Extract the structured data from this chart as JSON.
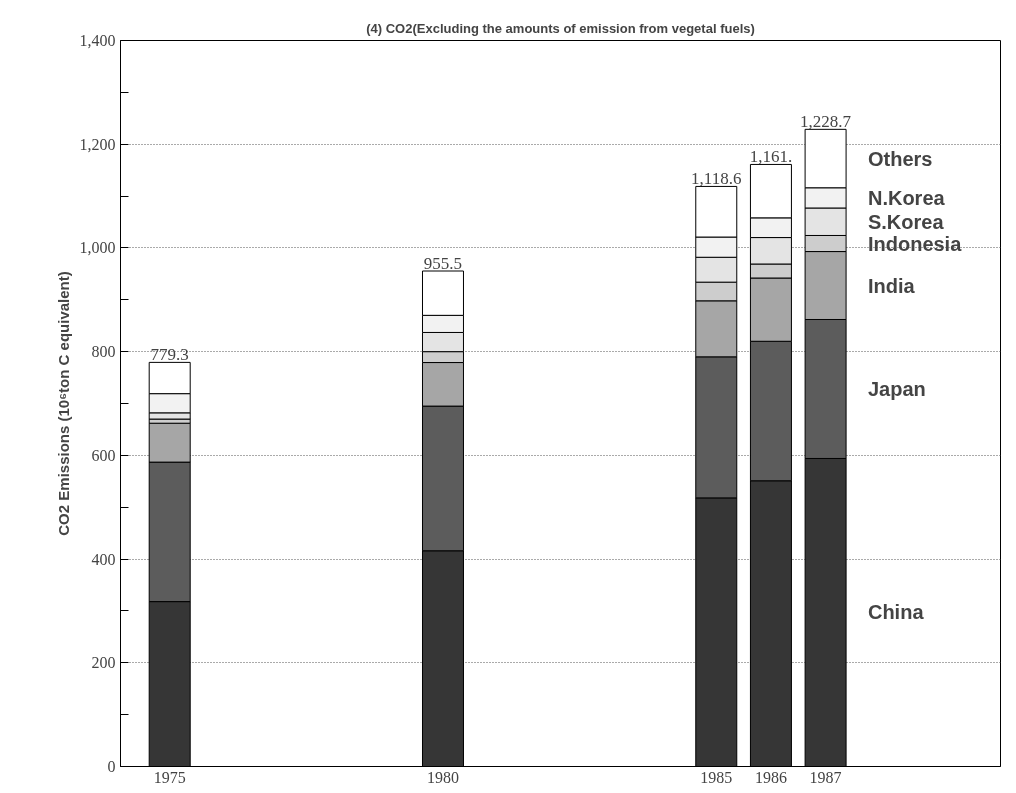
{
  "chart_data": {
    "type": "bar",
    "stacked": true,
    "title": "(4) CO2(Excluding the amounts of emission from vegetal fuels)",
    "ylabel": "CO2 Emissions (10⁶ton C equivalent)",
    "x": [
      1975,
      1980,
      1985,
      1986,
      1987
    ],
    "series": [
      {
        "name": "China",
        "color": "#363636",
        "values": [
          318,
          416,
          518,
          551,
          594
        ]
      },
      {
        "name": "Japan",
        "color": "#5c5c5c",
        "values": [
          269,
          279,
          272,
          269,
          268
        ]
      },
      {
        "name": "India",
        "color": "#a6a6a6",
        "values": [
          75,
          84,
          108,
          122,
          131
        ]
      },
      {
        "name": "Indonesia",
        "color": "#cdcdcd",
        "values": [
          8,
          21,
          36,
          27,
          31
        ]
      },
      {
        "name": "S.Korea",
        "color": "#e4e4e4",
        "values": [
          12,
          37,
          48,
          51,
          53
        ]
      },
      {
        "name": "N.Korea",
        "color": "#f2f2f2",
        "values": [
          37,
          33,
          39,
          38,
          39
        ]
      },
      {
        "name": "Others",
        "color": "#ffffff",
        "values": [
          60.3,
          85.5,
          97.6,
          103,
          112.7
        ]
      }
    ],
    "totals": [
      "779.3",
      "955.5",
      "1,118.6",
      "1,161.",
      "1,228.7"
    ],
    "xlim": [
      1974.1,
      1990.2
    ],
    "xticks": [
      1975,
      1980,
      1985,
      1986,
      1987
    ],
    "ylim": [
      0,
      1400
    ],
    "yticks": [
      0,
      {
        "value": 100,
        "label": null
      },
      {
        "value": 200,
        "label": "200"
      },
      {
        "value": 300,
        "label": null
      },
      400,
      {
        "value": 500,
        "label": null
      },
      600,
      {
        "value": 700,
        "label": null
      },
      800,
      {
        "value": 900,
        "label": null
      },
      {
        "value": 1000,
        "label": "1,000"
      },
      {
        "value": 1100,
        "label": null
      },
      {
        "value": 1200,
        "label": "1,200"
      },
      {
        "value": 1300,
        "label": null
      },
      {
        "value": 1400,
        "label": "1,400"
      }
    ],
    "grid": "y"
  }
}
